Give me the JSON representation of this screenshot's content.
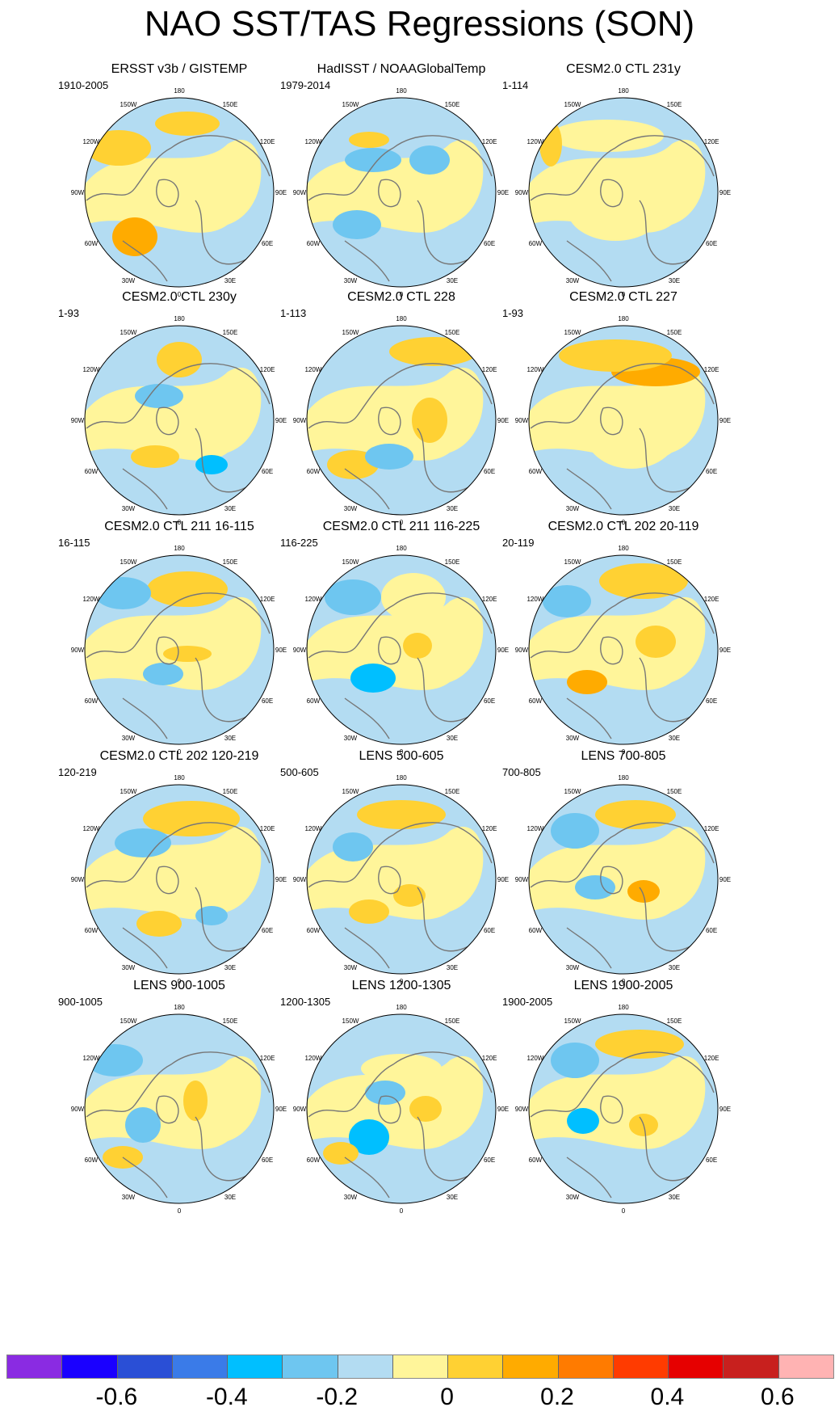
{
  "title": "NAO SST/TAS Regressions (SON)",
  "longitude_labels": [
    "180",
    "150E",
    "120E",
    "90E",
    "60E",
    "30E",
    "0",
    "30W",
    "60W",
    "90W",
    "120W",
    "150W"
  ],
  "panels": [
    {
      "title": "ERSST v3b / GISTEMP",
      "period": "1910-2005"
    },
    {
      "title": "HadISST / NOAAGlobalTemp",
      "period": "1979-2014"
    },
    {
      "title": "CESM2.0 CTL 231y",
      "period": "1-114"
    },
    {
      "title": "CESM2.0 CTL 230y",
      "period": "1-93"
    },
    {
      "title": "CESM2.0 CTL 228",
      "period": "1-113"
    },
    {
      "title": "CESM2.0 CTL 227",
      "period": "1-93"
    },
    {
      "title": "CESM2.0 CTL 211 16-115",
      "period": "16-115"
    },
    {
      "title": "CESM2.0 CTL 211 116-225",
      "period": "116-225"
    },
    {
      "title": "CESM2.0 CTL 202 20-119",
      "period": "20-119"
    },
    {
      "title": "CESM2.0 CTL 202 120-219",
      "period": "120-219"
    },
    {
      "title": "LENS 500-605",
      "period": "500-605"
    },
    {
      "title": "LENS 700-805",
      "period": "700-805"
    },
    {
      "title": "LENS 900-1005",
      "period": "900-1005"
    },
    {
      "title": "LENS 1200-1305",
      "period": "1200-1305"
    },
    {
      "title": "LENS 1900-2005",
      "period": "1900-2005"
    }
  ],
  "colorbar": {
    "colors": [
      "#8a2be2",
      "#1a00ff",
      "#2a4fd6",
      "#3a7be8",
      "#00bfff",
      "#6ec6f0",
      "#b3dcf2",
      "#fff59a",
      "#ffd133",
      "#ffab00",
      "#ff7b00",
      "#ff3b00",
      "#e60000",
      "#c8201e",
      "#ffb3b3"
    ],
    "labels": [
      "-0.6",
      "-0.4",
      "-0.2",
      "0",
      "0.2",
      "0.4",
      "0.6"
    ]
  },
  "palette": {
    "ocean_pos": "#fff59a",
    "ocean_neg": "#b3dcf2",
    "warm": "#ffd133",
    "hot": "#ffab00",
    "cool": "#6ec6f0",
    "cold": "#00bfff",
    "coast": "#777777"
  }
}
